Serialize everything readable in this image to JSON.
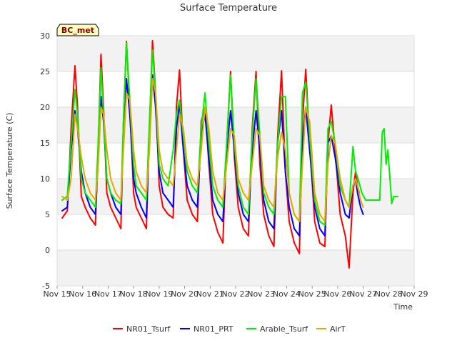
{
  "chart_data": {
    "type": "line",
    "title": "Surface Temperature",
    "xlabel": "Time",
    "ylabel": "Surface Temperature (C)",
    "badge": "BC_met",
    "xlim": [
      15,
      29
    ],
    "ylim": [
      -5,
      30
    ],
    "x_ticks": [
      15,
      16,
      17,
      18,
      19,
      20,
      21,
      22,
      23,
      24,
      25,
      26,
      27,
      28,
      29
    ],
    "x_tick_labels": [
      "Nov 15",
      "Nov 16",
      "Nov 17",
      "Nov 18",
      "Nov 19",
      "Nov 20",
      "Nov 21",
      "Nov 22",
      "Nov 23",
      "Nov 24",
      "Nov 25",
      "Nov 26",
      "Nov 27",
      "Nov 28",
      "Nov 29"
    ],
    "y_ticks": [
      -5,
      0,
      5,
      10,
      15,
      20,
      25,
      30
    ],
    "y_tick_labels": [
      "-5",
      "0",
      "5",
      "10",
      "15",
      "20",
      "25",
      "30"
    ],
    "grid": "horizontal alternating bands",
    "legend_position": "bottom",
    "series": [
      {
        "name": "NR01_Tsurf",
        "color": "#ff0000",
        "x": [
          15.2,
          15.4,
          15.55,
          15.7,
          15.8,
          15.95,
          16.1,
          16.3,
          16.5,
          16.6,
          16.72,
          16.82,
          16.95,
          17.1,
          17.3,
          17.5,
          17.6,
          17.72,
          17.85,
          18.0,
          18.1,
          18.3,
          18.5,
          18.62,
          18.74,
          18.86,
          19.0,
          19.15,
          19.35,
          19.55,
          19.68,
          19.8,
          19.95,
          20.1,
          20.3,
          20.5,
          20.65,
          20.8,
          20.95,
          21.1,
          21.3,
          21.5,
          21.65,
          21.8,
          21.95,
          22.1,
          22.3,
          22.5,
          22.65,
          22.8,
          22.95,
          23.1,
          23.3,
          23.5,
          23.65,
          23.8,
          23.95,
          24.1,
          24.3,
          24.5,
          24.62,
          24.75,
          24.9,
          25.1,
          25.3,
          25.5,
          25.62,
          25.75,
          25.9,
          26.1,
          26.3,
          26.45,
          26.6,
          26.7,
          26.78,
          26.85
        ],
        "y": [
          4.5,
          5.5,
          17,
          25.8,
          20,
          7.5,
          6,
          4.5,
          3.5,
          13,
          27.4,
          20,
          8,
          6,
          4.5,
          3,
          18,
          29.2,
          20,
          8,
          6,
          4.5,
          3,
          17,
          29.3,
          22,
          9,
          6,
          5,
          4.5,
          20,
          25.2,
          14,
          7,
          5,
          4,
          18,
          20,
          12,
          5,
          2.5,
          1,
          15,
          25,
          13,
          6,
          3,
          2,
          17,
          25,
          12,
          5,
          2,
          0.5,
          16,
          25.1,
          11,
          4,
          1,
          -0.5,
          18,
          25.3,
          15,
          4,
          1,
          0.5,
          15,
          20.3,
          14,
          5,
          2,
          -2.5,
          8,
          11,
          9,
          8
        ]
      },
      {
        "name": "NR01_PRT",
        "color": "#0000ff",
        "x": [
          15.2,
          15.4,
          15.55,
          15.7,
          15.8,
          15.95,
          16.1,
          16.3,
          16.5,
          16.6,
          16.72,
          16.82,
          16.95,
          17.1,
          17.3,
          17.5,
          17.6,
          17.72,
          17.85,
          18.0,
          18.1,
          18.3,
          18.5,
          18.62,
          18.74,
          18.86,
          19.0,
          19.15,
          19.35,
          19.55,
          19.68,
          19.8,
          19.95,
          20.1,
          20.3,
          20.5,
          20.65,
          20.8,
          20.95,
          21.1,
          21.3,
          21.5,
          21.65,
          21.8,
          21.95,
          22.1,
          22.3,
          22.5,
          22.65,
          22.8,
          22.95,
          23.1,
          23.3,
          23.5,
          23.65,
          23.8,
          23.95,
          24.1,
          24.3,
          24.5,
          24.62,
          24.75,
          24.9,
          25.1,
          25.3,
          25.5,
          25.62,
          25.75,
          25.9,
          26.1,
          26.3,
          26.45,
          26.6,
          26.7,
          26.78,
          26.9,
          27.0
        ],
        "y": [
          5.5,
          6,
          14,
          19.5,
          17,
          11,
          8,
          6,
          5,
          12,
          21.5,
          18,
          10,
          8,
          6,
          5,
          16,
          24,
          19,
          10,
          8,
          6,
          4.5,
          16,
          24.5,
          20,
          11,
          8,
          7,
          6,
          17,
          20.5,
          14,
          9,
          7,
          6,
          16,
          19,
          13,
          7,
          5,
          4,
          14,
          19.5,
          14,
          8,
          5,
          4,
          14,
          19.5,
          14,
          7,
          4,
          3,
          15,
          19.5,
          11,
          6,
          3,
          2,
          15,
          20,
          14,
          6,
          3,
          2,
          15,
          16,
          13,
          8,
          5,
          4.5,
          9,
          10,
          8,
          6,
          5
        ]
      },
      {
        "name": "Arable_Tsurf",
        "color": "#00ee00",
        "x": [
          15.2,
          15.4,
          15.55,
          15.7,
          15.8,
          15.95,
          16.1,
          16.3,
          16.5,
          16.6,
          16.72,
          16.82,
          16.95,
          17.1,
          17.3,
          17.5,
          17.6,
          17.72,
          17.85,
          18.0,
          18.1,
          18.3,
          18.5,
          18.62,
          18.74,
          18.86,
          19.0,
          19.15,
          19.35,
          19.55,
          19.68,
          19.8,
          19.95,
          20.1,
          20.3,
          20.5,
          20.65,
          20.8,
          20.95,
          21.1,
          21.3,
          21.5,
          21.65,
          21.8,
          21.95,
          22.1,
          22.3,
          22.5,
          22.65,
          22.8,
          22.95,
          23.1,
          23.3,
          23.5,
          23.65,
          23.8,
          23.95,
          24.1,
          24.3,
          24.5,
          24.62,
          24.75,
          24.9,
          25.1,
          25.3,
          25.5,
          25.62,
          25.75,
          25.9,
          26.1,
          26.3,
          26.45,
          26.6,
          26.7,
          26.8,
          26.95,
          27.1,
          27.3,
          27.5,
          27.65,
          27.75,
          27.82,
          27.9,
          27.97,
          28.05,
          28.12,
          28.2,
          28.35
        ],
        "y": [
          7,
          7.5,
          15,
          22.5,
          19,
          10,
          8,
          7,
          6,
          14,
          25.5,
          19,
          10,
          8,
          7,
          6.5,
          18,
          29,
          21,
          12,
          9,
          8,
          7,
          18,
          28,
          22,
          12,
          10,
          9,
          14,
          19,
          21,
          16,
          11,
          9,
          8,
          17,
          22,
          15,
          9,
          7,
          6,
          15,
          24.5,
          15,
          9,
          6,
          5,
          16,
          24,
          16,
          8,
          6,
          5,
          15,
          21.5,
          21.5,
          8,
          5,
          4,
          22,
          23.5,
          16,
          7,
          4,
          3.5,
          17,
          18,
          15,
          9,
          7,
          6,
          14.5,
          11,
          10,
          8,
          7,
          7,
          7,
          7,
          16.5,
          17,
          12,
          14,
          10,
          6.5,
          7.5,
          7.5
        ]
      },
      {
        "name": "AirT",
        "color": "#e6a800",
        "x": [
          15.2,
          15.4,
          15.55,
          15.7,
          15.8,
          15.95,
          16.1,
          16.3,
          16.5,
          16.6,
          16.72,
          16.82,
          16.95,
          17.1,
          17.3,
          17.5,
          17.6,
          17.72,
          17.85,
          18.0,
          18.1,
          18.3,
          18.5,
          18.62,
          18.74,
          18.86,
          19.0,
          19.15,
          19.35,
          19.55,
          19.68,
          19.8,
          19.95,
          20.1,
          20.3,
          20.5,
          20.65,
          20.8,
          20.95,
          21.1,
          21.3,
          21.5,
          21.65,
          21.8,
          21.95,
          22.1,
          22.3,
          22.5,
          22.65,
          22.8,
          22.95,
          23.1,
          23.3,
          23.5,
          23.65,
          23.8,
          23.95,
          24.1,
          24.3,
          24.5,
          24.62,
          24.75,
          24.9,
          25.1,
          25.3,
          25.5,
          25.62,
          25.75,
          25.9,
          26.1,
          26.3,
          26.45,
          26.6,
          26.7,
          26.78,
          26.9,
          27.0
        ],
        "y": [
          7.5,
          7,
          10,
          19,
          17,
          13,
          10,
          8,
          7,
          11,
          20,
          19,
          14,
          10,
          8,
          7,
          14,
          22,
          21,
          14,
          11,
          9,
          8,
          14,
          24,
          22,
          14,
          11,
          10,
          9,
          14,
          19,
          17,
          12,
          10,
          9,
          14,
          20,
          17,
          11,
          8,
          7,
          12,
          17,
          16,
          10,
          8,
          7,
          12,
          17,
          16,
          9,
          7,
          6,
          13,
          16.5,
          14,
          8,
          5,
          4,
          12,
          20,
          18,
          8,
          5,
          4,
          12,
          16,
          15,
          10,
          7,
          6,
          9,
          10,
          9,
          7,
          6
        ]
      }
    ]
  }
}
